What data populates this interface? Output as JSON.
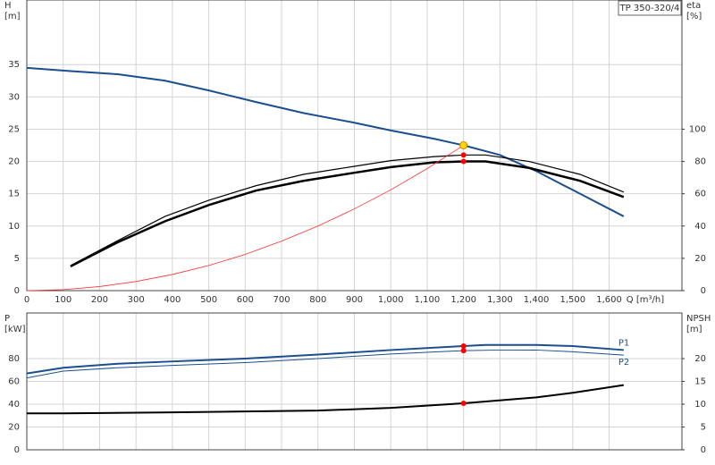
{
  "chart_data": [
    {
      "type": "line",
      "title": "TP 350-320/4",
      "x_label": "Q [m³/h]",
      "y_label": [
        "H",
        "[m]"
      ],
      "y2_label": [
        "eta",
        "[%]"
      ],
      "xlim": [
        0,
        1800
      ],
      "xticks": [
        0,
        100,
        200,
        300,
        400,
        500,
        600,
        700,
        800,
        900,
        {
          "value": 1000,
          "label": "1,000"
        },
        {
          "value": 1100,
          "label": "1,100"
        },
        {
          "value": 1200,
          "label": "1,200"
        },
        {
          "value": 1300,
          "label": "1,300"
        },
        {
          "value": 1400,
          "label": "1,400"
        },
        {
          "value": 1500,
          "label": "1,500"
        },
        {
          "value": 1600,
          "label": "1,600"
        }
      ],
      "ylim": [
        0,
        45
      ],
      "yticks": [
        0,
        5,
        10,
        15,
        20,
        25,
        30,
        35
      ],
      "y2lim": [
        0,
        180
      ],
      "y2ticks": [
        0,
        20,
        40,
        60,
        80,
        100
      ],
      "grid": true,
      "series": [
        {
          "color": "#1a4f8f",
          "width": 2,
          "axis": "y",
          "x": [
            0,
            120,
            250,
            380,
            500,
            630,
            760,
            900,
            1000,
            1120,
            1200,
            1300,
            1400,
            1520,
            1640
          ],
          "values": [
            34.5,
            34,
            33.5,
            32.5,
            31,
            29.2,
            27.5,
            26,
            24.8,
            23.5,
            22.5,
            21,
            18.5,
            15,
            11.5
          ]
        },
        {
          "color": "#000000",
          "width": 2.5,
          "axis": "y2",
          "x": [
            120,
            250,
            380,
            500,
            630,
            760,
            900,
            1000,
            1120,
            1200,
            1260,
            1380,
            1520,
            1640
          ],
          "values": [
            15,
            30,
            43,
            53,
            62,
            68,
            73,
            76.5,
            79.5,
            80,
            80,
            76,
            68,
            58
          ]
        },
        {
          "color": "#000000",
          "width": 1.2,
          "axis": "y2",
          "x": [
            120,
            250,
            380,
            500,
            630,
            760,
            900,
            1000,
            1120,
            1200,
            1260,
            1380,
            1520,
            1640
          ],
          "values": [
            15.5,
            31,
            46,
            56,
            65,
            72,
            77,
            80.5,
            83,
            84,
            84,
            80,
            72,
            61
          ]
        },
        {
          "color": "#ff3030",
          "width": 0.8,
          "axis": "y",
          "x": [
            0,
            100,
            200,
            300,
            400,
            500,
            600,
            700,
            800,
            900,
            1000,
            1100,
            1200
          ],
          "values": [
            0,
            0.16,
            0.63,
            1.41,
            2.5,
            3.9,
            5.6,
            7.66,
            10,
            12.66,
            15.6,
            18.9,
            22.5
          ]
        }
      ],
      "points": [
        {
          "x": 1200,
          "y": 84,
          "axis": "y2",
          "color": "#ff0000"
        },
        {
          "x": 1200,
          "y": 80,
          "axis": "y2",
          "color": "#ff0000"
        },
        {
          "x": 1200,
          "y": 22.5,
          "axis": "y",
          "color": "#ffd700"
        }
      ]
    },
    {
      "type": "line",
      "y_label": [
        "P",
        "[kW]"
      ],
      "y2_label": [
        "NPSH",
        "[m]"
      ],
      "xlim": [
        0,
        1800
      ],
      "ylim": [
        0,
        120
      ],
      "yticks": [
        0,
        20,
        40,
        60,
        80
      ],
      "y2lim": [
        0,
        30
      ],
      "y2ticks": [
        0,
        5,
        10,
        15,
        20
      ],
      "grid": true,
      "series": [
        {
          "name": "P1",
          "color": "#1a4f8f",
          "width": 2,
          "axis": "y",
          "x": [
            0,
            100,
            250,
            400,
            600,
            800,
            1000,
            1200,
            1260,
            1400,
            1500,
            1640
          ],
          "values": [
            67,
            72,
            75.5,
            77.5,
            80,
            83.5,
            87.5,
            91,
            92,
            92,
            91,
            87.5
          ]
        },
        {
          "name": "P2",
          "color": "#1a4f8f",
          "width": 1,
          "axis": "y",
          "x": [
            0,
            100,
            250,
            400,
            600,
            800,
            1000,
            1200,
            1300,
            1400,
            1500,
            1640
          ],
          "values": [
            63,
            69,
            72,
            74,
            76.5,
            80,
            84,
            87,
            87.5,
            87.5,
            86,
            83
          ]
        },
        {
          "color": "#000000",
          "width": 2,
          "axis": "y2",
          "x": [
            0,
            100,
            400,
            800,
            1000,
            1200,
            1400,
            1500,
            1640
          ],
          "values": [
            8,
            8,
            8.2,
            8.6,
            9.2,
            10.2,
            11.5,
            12.5,
            14.2
          ]
        }
      ],
      "points": [
        {
          "x": 1200,
          "y": 91,
          "axis": "y",
          "color": "#ff0000"
        },
        {
          "x": 1200,
          "y": 87,
          "axis": "y",
          "color": "#ff0000"
        },
        {
          "x": 1200,
          "y": 10.2,
          "axis": "y2",
          "color": "#ff0000"
        }
      ]
    }
  ]
}
